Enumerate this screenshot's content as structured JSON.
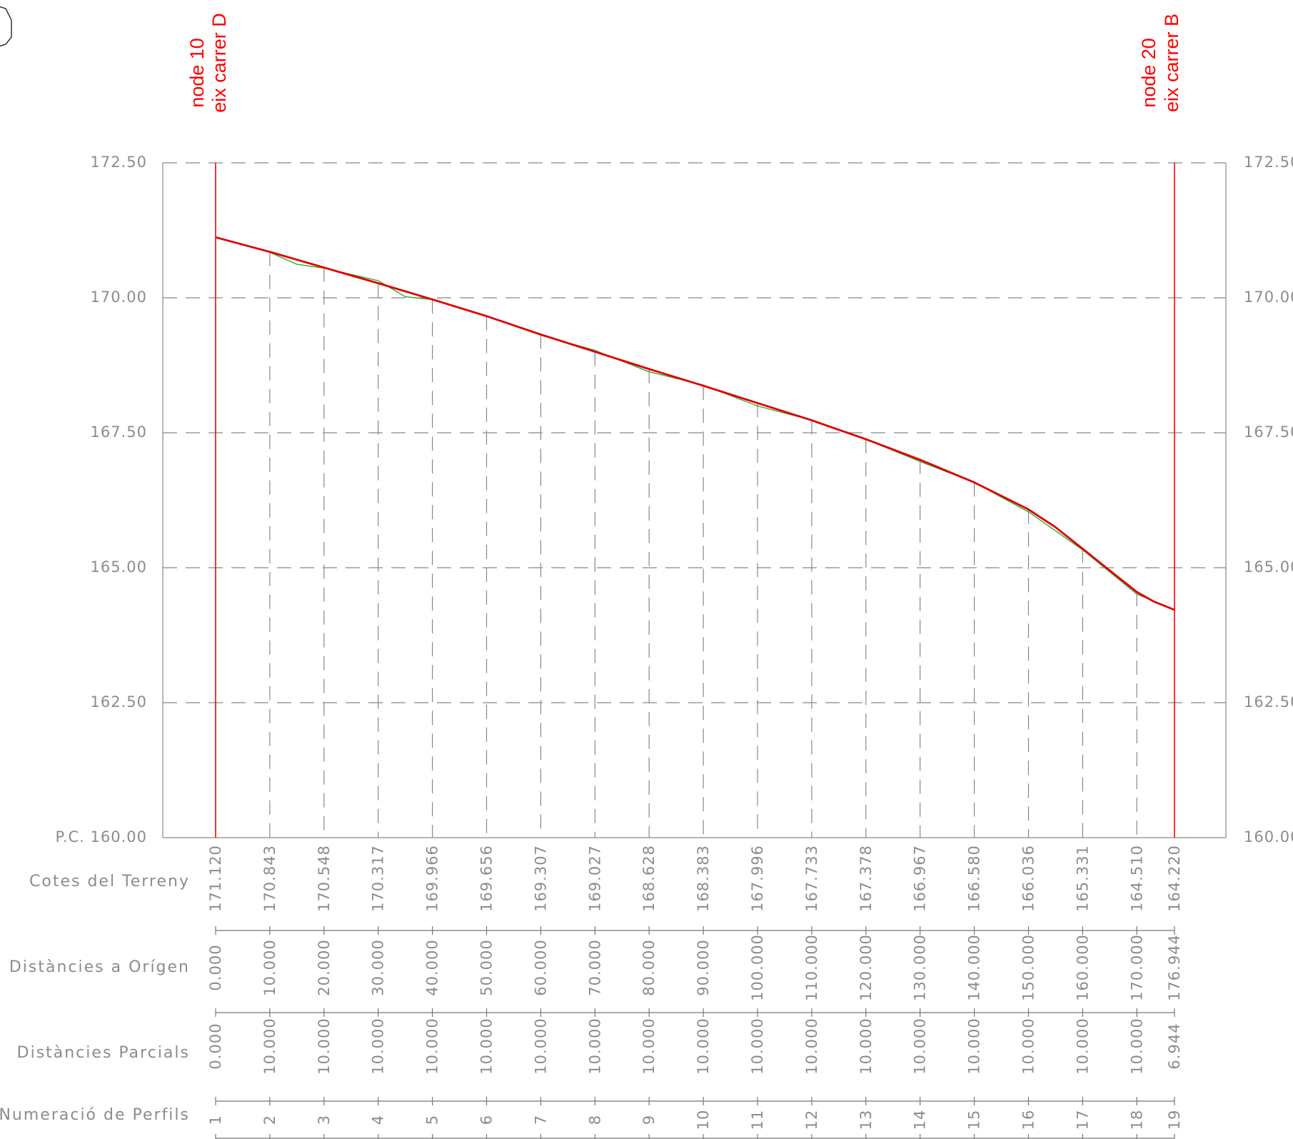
{
  "chart_data": {
    "type": "line",
    "ylim": [
      160,
      172.5
    ],
    "y_ticks": [
      "172.50",
      "170.00",
      "167.50",
      "165.00",
      "162.50",
      "160.00"
    ],
    "datum_label": "P.C. 160.00",
    "grid": true,
    "stations_x": [
      0,
      10,
      20,
      30,
      40,
      50,
      60,
      70,
      80,
      90,
      100,
      110,
      120,
      130,
      140,
      150,
      160,
      170,
      176.944
    ],
    "terrain_elevations": [
      "171.120",
      "170.843",
      "170.548",
      "170.317",
      "169.966",
      "169.656",
      "169.307",
      "169.027",
      "168.628",
      "168.383",
      "167.996",
      "167.733",
      "167.378",
      "166.967",
      "166.580",
      "166.036",
      "165.331",
      "164.510",
      "164.220"
    ],
    "distances_origin": [
      "0.000",
      "10.000",
      "20.000",
      "30.000",
      "40.000",
      "50.000",
      "60.000",
      "70.000",
      "80.000",
      "90.000",
      "100.000",
      "110.000",
      "120.000",
      "130.000",
      "140.000",
      "150.000",
      "160.000",
      "170.000",
      "176.944"
    ],
    "distances_partial": [
      "0.000",
      "10.000",
      "10.000",
      "10.000",
      "10.000",
      "10.000",
      "10.000",
      "10.000",
      "10.000",
      "10.000",
      "10.000",
      "10.000",
      "10.000",
      "10.000",
      "10.000",
      "10.000",
      "10.000",
      "10.000",
      "6.944"
    ],
    "profile_numbers": [
      "1",
      "2",
      "3",
      "4",
      "5",
      "6",
      "7",
      "8",
      "9",
      "10",
      "11",
      "12",
      "13",
      "14",
      "15",
      "16",
      "17",
      "18",
      "19"
    ],
    "row_labels": {
      "elevations": "Cotes del Terreny",
      "distances_origin": "Distàncies a Orígen",
      "distances_partial": "Distàncies Parcials",
      "profile_numbers": "Numeració de Perfils"
    },
    "series": [
      {
        "color": "#e00000",
        "x": [
          0,
          10,
          20,
          30,
          40,
          50,
          60,
          70,
          80,
          90,
          100,
          110,
          120,
          130,
          140,
          150,
          155,
          160,
          165,
          170,
          173,
          176.944
        ],
        "y": [
          171.12,
          170.85,
          170.56,
          170.27,
          169.97,
          169.66,
          169.32,
          169.0,
          168.68,
          168.37,
          168.05,
          167.73,
          167.38,
          167.0,
          166.58,
          166.08,
          165.75,
          165.35,
          164.95,
          164.55,
          164.38,
          164.22
        ]
      },
      {
        "color": "#33aa33",
        "x": [
          0,
          10,
          15,
          20,
          30,
          35,
          40,
          50,
          60,
          70,
          80,
          90,
          100,
          110,
          120,
          130,
          140,
          150,
          160,
          170,
          176.944
        ],
        "y": [
          171.12,
          170.843,
          170.62,
          170.548,
          170.317,
          170.02,
          169.966,
          169.656,
          169.307,
          169.027,
          168.628,
          168.383,
          167.996,
          167.733,
          167.378,
          166.967,
          166.58,
          166.036,
          165.331,
          164.51,
          164.22
        ]
      }
    ]
  },
  "markers": [
    {
      "line1": "node 10",
      "line2": "eix carrer D"
    },
    {
      "line1": "node 20",
      "line2": "eix carrer B"
    }
  ],
  "colors": {
    "grid": "#888888",
    "axis_text": "#8c8c8c",
    "markers": "#ff0000"
  }
}
